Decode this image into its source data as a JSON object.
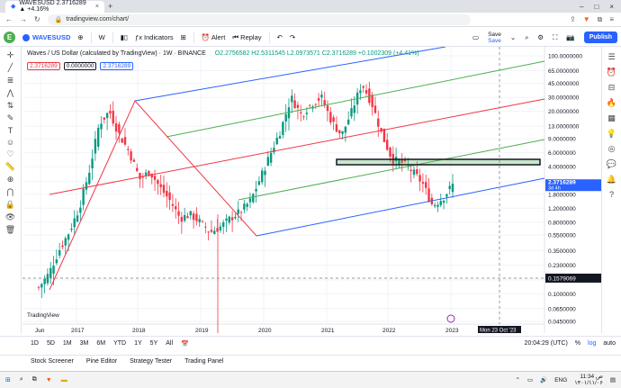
{
  "browser": {
    "tab_title": "WAVESUSD 2.3716289 ▲ +4.16%",
    "url": "tradingview.com/chart/"
  },
  "toolbar": {
    "logo": "E",
    "symbol": "WAVESUSD",
    "interval": "W",
    "indicators": "Indicators",
    "alert": "Alert",
    "replay": "Replay",
    "save": "Save",
    "save_sub": "Save",
    "publish": "Publish"
  },
  "legend": {
    "title": "Waves / US Dollar (calculated by TradingView) · 1W · BINANCE",
    "ohlc": "O2.2756582 H2.5311545 L2.0973571 C2.3716289 +0.1002309 (+4.41%)",
    "val1": "2.3716289",
    "val2": "0.0000000",
    "val3": "2.3716289"
  },
  "chart_data": {
    "type": "candlestick",
    "x_ticks": [
      "Jun",
      "2017",
      "2018",
      "2019",
      "2020",
      "2021",
      "2022",
      "2023"
    ],
    "y_ticks": [
      "100.0000000",
      "65.0000000",
      "45.0000000",
      "30.0000000",
      "20.0000000",
      "13.0000000",
      "9.0000000",
      "6.0000000",
      "4.0000000",
      "2.6000000",
      "1.8000000",
      "1.2000000",
      "0.8000000",
      "0.5500000",
      "0.3500000",
      "0.2300000",
      "0.1500000",
      "0.1000000",
      "0.0650000",
      "0.0450000"
    ],
    "price_label": "2.3716289",
    "price_label_sub": "3d 4h",
    "crosshair_price": "0.1579069",
    "crosshair_date": "Mon 23 Oct '23",
    "y_scale": "log",
    "colors": {
      "up": "#089981",
      "down": "#f23645",
      "channel_mid": "#f23645",
      "channel_lines": "#4caf50",
      "channel_bottom": "#2962ff"
    },
    "series": [
      {
        "name": "",
        "values": [
          0.12,
          0.18,
          0.35,
          0.6,
          1.2,
          3.5,
          14,
          20,
          10,
          6,
          2.8,
          3.5,
          2.2,
          1.5,
          0.9,
          1.0,
          0.8,
          0.6,
          0.7,
          0.9,
          1.1,
          1.5,
          3.0,
          6.0,
          12,
          30,
          18,
          25,
          30,
          15,
          10,
          20,
          45,
          25,
          10,
          5.0,
          4.5,
          3.5,
          2.5,
          1.3,
          1.6,
          2.37
        ]
      }
    ]
  },
  "time_controls": {
    "ranges": [
      "1D",
      "5D",
      "1M",
      "3M",
      "6M",
      "YTD",
      "1Y",
      "5Y",
      "All"
    ],
    "clock": "20:04:29 (UTC)",
    "pct": "%",
    "log": "log",
    "auto": "auto"
  },
  "panels": [
    "Stock Screener",
    "Pine Editor",
    "Strategy Tester",
    "Trading Panel"
  ],
  "taskbar": {
    "lang": "ENG",
    "time": "11:34 ص",
    "date": "۱۴۰۱/۱۱/۰۶"
  },
  "watermark": "TradingView"
}
